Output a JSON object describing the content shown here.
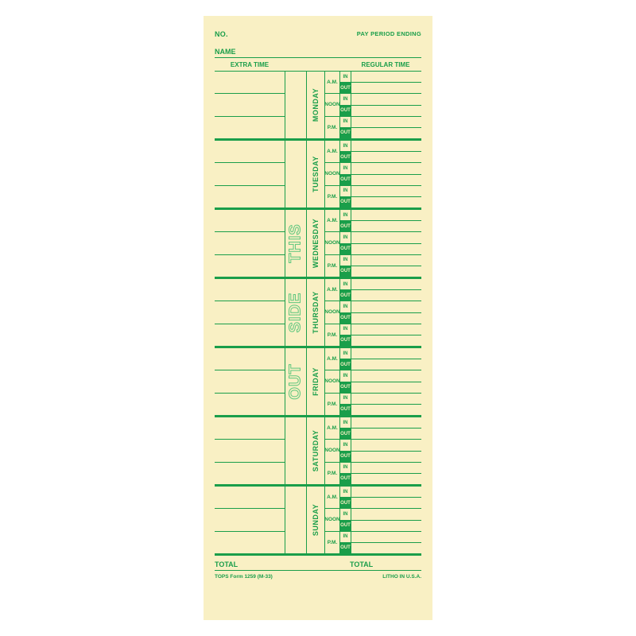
{
  "bg_page": "#ffffff",
  "bg_card": "#f9f0c4",
  "ink": "#1a9e4a",
  "header": {
    "no": "NO.",
    "pay_period": "PAY PERIOD ENDING",
    "name": "NAME"
  },
  "columns": {
    "extra": "EXTRA TIME",
    "regular": "REGULAR TIME"
  },
  "days": [
    "MONDAY",
    "TUESDAY",
    "WEDNESDAY",
    "THURSDAY",
    "FRIDAY",
    "SATURDAY",
    "SUNDAY"
  ],
  "periods": [
    "A.M.",
    "NOON",
    "P.M."
  ],
  "inout": [
    "IN",
    "OUT",
    "IN",
    "OUT",
    "IN",
    "OUT"
  ],
  "watermark": [
    "THIS",
    "SIDE",
    "OUT"
  ],
  "totals": "TOTAL",
  "footer": {
    "left": "TOPS Form 1259 (M-33)",
    "right": "LITHO IN U.S.A."
  },
  "day_row_height": 84
}
